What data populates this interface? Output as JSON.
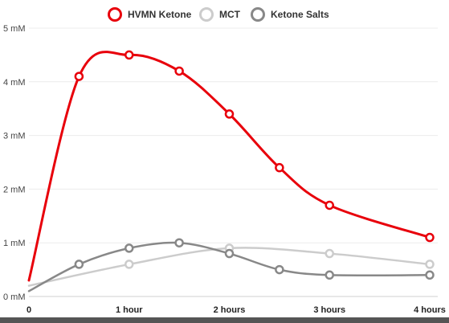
{
  "chart_data": {
    "type": "line",
    "title": "",
    "xlabel": "",
    "ylabel": "",
    "x": [
      0,
      0.5,
      1,
      1.5,
      2,
      2.5,
      3,
      4
    ],
    "xlim": [
      0,
      4
    ],
    "ylim": [
      0,
      5
    ],
    "x_ticks": [
      {
        "value": 0,
        "label": "0"
      },
      {
        "value": 1,
        "label": "1 hour"
      },
      {
        "value": 2,
        "label": "2 hours"
      },
      {
        "value": 3,
        "label": "3 hours"
      },
      {
        "value": 4,
        "label": "4 hours"
      }
    ],
    "y_ticks": [
      {
        "value": 0,
        "label": "0 mM"
      },
      {
        "value": 1,
        "label": "1 mM"
      },
      {
        "value": 2,
        "label": "2 mM"
      },
      {
        "value": 3,
        "label": "3 mM"
      },
      {
        "value": 4,
        "label": "4 mM"
      },
      {
        "value": 5,
        "label": "5 mM"
      }
    ],
    "grid": true,
    "legend_position": "top-center",
    "series": [
      {
        "name": "HVMN Ketone",
        "color": "#e8000b",
        "line_width": 3,
        "points": [
          {
            "x": 0,
            "y": 0.3,
            "marker": false
          },
          {
            "x": 0.5,
            "y": 4.1,
            "marker": true
          },
          {
            "x": 1,
            "y": 4.5,
            "marker": true
          },
          {
            "x": 1.5,
            "y": 4.2,
            "marker": true
          },
          {
            "x": 2,
            "y": 3.4,
            "marker": true
          },
          {
            "x": 2.5,
            "y": 2.4,
            "marker": true
          },
          {
            "x": 3,
            "y": 1.7,
            "marker": true
          },
          {
            "x": 4,
            "y": 1.1,
            "marker": true
          }
        ]
      },
      {
        "name": "MCT",
        "color": "#cccccc",
        "line_width": 2.5,
        "points": [
          {
            "x": 0,
            "y": 0.2,
            "marker": false
          },
          {
            "x": 1,
            "y": 0.6,
            "marker": true
          },
          {
            "x": 2,
            "y": 0.9,
            "marker": true
          },
          {
            "x": 3,
            "y": 0.8,
            "marker": true
          },
          {
            "x": 4,
            "y": 0.6,
            "marker": true
          }
        ]
      },
      {
        "name": "Ketone Salts",
        "color": "#888888",
        "line_width": 2.5,
        "points": [
          {
            "x": 0,
            "y": 0.1,
            "marker": false
          },
          {
            "x": 0.5,
            "y": 0.6,
            "marker": true
          },
          {
            "x": 1,
            "y": 0.9,
            "marker": true
          },
          {
            "x": 1.5,
            "y": 1.0,
            "marker": true
          },
          {
            "x": 2,
            "y": 0.8,
            "marker": true
          },
          {
            "x": 2.5,
            "y": 0.5,
            "marker": true
          },
          {
            "x": 3,
            "y": 0.4,
            "marker": true
          },
          {
            "x": 4,
            "y": 0.4,
            "marker": true
          }
        ]
      }
    ]
  }
}
